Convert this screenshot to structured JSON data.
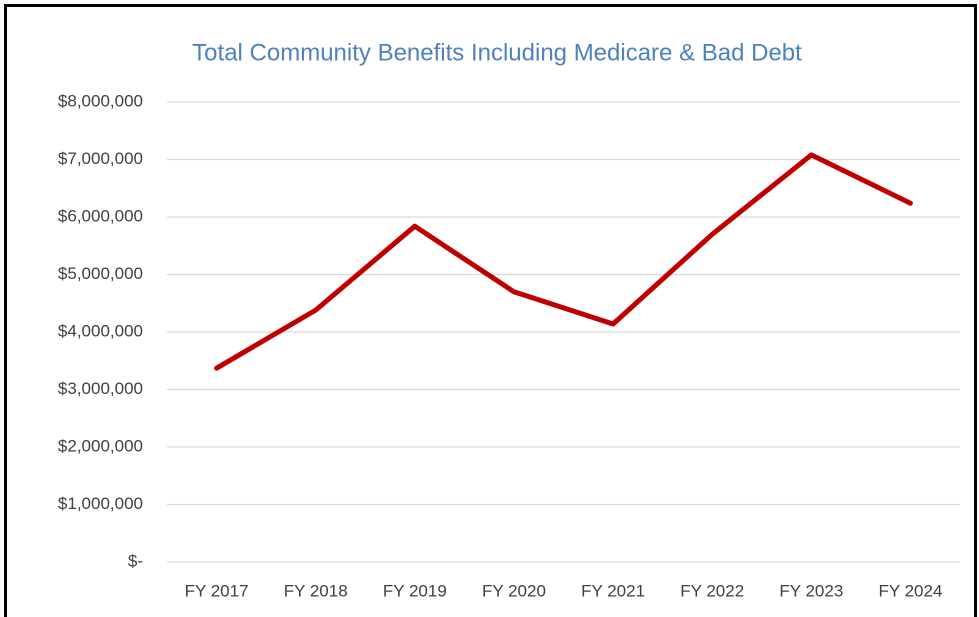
{
  "chart_data": {
    "type": "line",
    "title": "Total Community Benefits Including Medicare & Bad Debt",
    "categories": [
      "FY 2017",
      "FY 2018",
      "FY 2019",
      "FY 2020",
      "FY 2021",
      "FY 2022",
      "FY 2023",
      "FY 2024"
    ],
    "series": [
      {
        "name": "Total Community Benefits",
        "color": "#c00000",
        "values": [
          3370000,
          4380000,
          5840000,
          4700000,
          4140000,
          5700000,
          7080000,
          6240000
        ]
      }
    ],
    "ylim": [
      0,
      8000000
    ],
    "yticks": [
      {
        "value": 0,
        "label": "$-"
      },
      {
        "value": 1000000,
        "label": "$1,000,000"
      },
      {
        "value": 2000000,
        "label": "$2,000,000"
      },
      {
        "value": 3000000,
        "label": "$3,000,000"
      },
      {
        "value": 4000000,
        "label": "$4,000,000"
      },
      {
        "value": 5000000,
        "label": "$5,000,000"
      },
      {
        "value": 6000000,
        "label": "$6,000,000"
      },
      {
        "value": 7000000,
        "label": "$7,000,000"
      },
      {
        "value": 8000000,
        "label": "$8,000,000"
      }
    ],
    "grid": true
  }
}
